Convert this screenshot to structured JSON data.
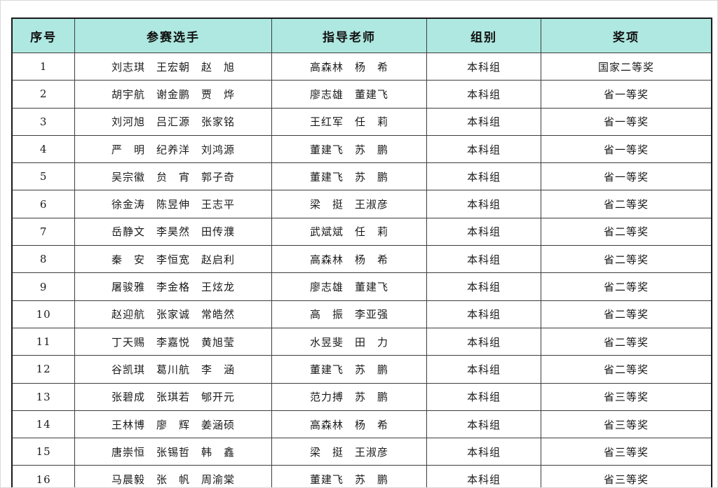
{
  "colors": {
    "header_bg": "#aee8e0",
    "border": "#3c3c3c",
    "text": "#1a1a1a"
  },
  "table": {
    "headers": [
      "序号",
      "参赛选手",
      "指导老师",
      "组别",
      "奖项"
    ],
    "rows": [
      {
        "no": "1",
        "contestants": "刘志琪　王宏朝　赵　旭",
        "teachers": "高森林　杨　希",
        "group": "本科组",
        "award": "国家二等奖"
      },
      {
        "no": "2",
        "contestants": "胡宇航　谢金鹏　贾　烨",
        "teachers": "廖志雄　董建飞",
        "group": "本科组",
        "award": "省一等奖"
      },
      {
        "no": "3",
        "contestants": "刘河旭　吕汇源　张家铭",
        "teachers": "王红军　任　莉",
        "group": "本科组",
        "award": "省一等奖"
      },
      {
        "no": "4",
        "contestants": "严　明　纪养洋　刘鸿源",
        "teachers": "董建飞　苏　鹏",
        "group": "本科组",
        "award": "省一等奖"
      },
      {
        "no": "5",
        "contestants": "吴宗徽　贠　宵　郭子奇",
        "teachers": "董建飞　苏　鹏",
        "group": "本科组",
        "award": "省一等奖"
      },
      {
        "no": "6",
        "contestants": "徐金涛　陈昱伸　王志平",
        "teachers": "梁　挺　王淑彦",
        "group": "本科组",
        "award": "省二等奖"
      },
      {
        "no": "7",
        "contestants": "岳静文　李昊然　田传濮",
        "teachers": "武斌斌　任　莉",
        "group": "本科组",
        "award": "省二等奖"
      },
      {
        "no": "8",
        "contestants": "秦　安　李恒宽　赵启利",
        "teachers": "高森林　杨　希",
        "group": "本科组",
        "award": "省二等奖"
      },
      {
        "no": "9",
        "contestants": "屠骏雅　李金格　王炫龙",
        "teachers": "廖志雄　董建飞",
        "group": "本科组",
        "award": "省二等奖"
      },
      {
        "no": "10",
        "contestants": "赵迎航　张家诚　常皓然",
        "teachers": "高　振　李亚强",
        "group": "本科组",
        "award": "省二等奖"
      },
      {
        "no": "11",
        "contestants": "丁天赐　李嘉悦　黄旭莹",
        "teachers": "水昱斐　田　力",
        "group": "本科组",
        "award": "省二等奖"
      },
      {
        "no": "12",
        "contestants": "谷凯琪　葛川航　李　涵",
        "teachers": "董建飞　苏　鹏",
        "group": "本科组",
        "award": "省二等奖"
      },
      {
        "no": "13",
        "contestants": "张碧成　张琪若　郇开元",
        "teachers": "范力搏　苏　鹏",
        "group": "本科组",
        "award": "省三等奖"
      },
      {
        "no": "14",
        "contestants": "王林博　廖　辉　姜涵硕",
        "teachers": "高森林　杨　希",
        "group": "本科组",
        "award": "省三等奖"
      },
      {
        "no": "15",
        "contestants": "唐崇恒　张锡哲　韩　鑫",
        "teachers": "梁　挺　王淑彦",
        "group": "本科组",
        "award": "省三等奖"
      },
      {
        "no": "16",
        "contestants": "马晨毅　张　帆　周渝棠",
        "teachers": "董建飞　苏　鹏",
        "group": "本科组",
        "award": "省三等奖"
      }
    ]
  }
}
